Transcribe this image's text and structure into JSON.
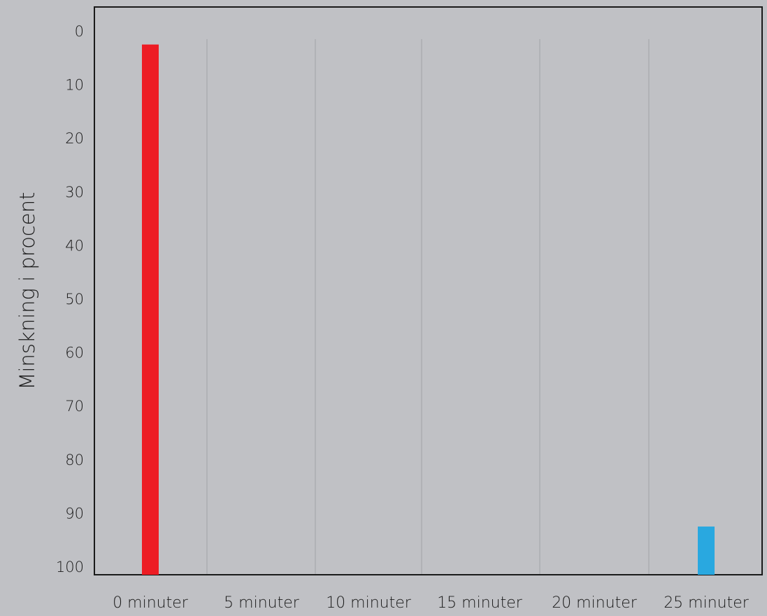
{
  "chart_data": {
    "type": "bar",
    "title": "",
    "xlabel": "",
    "ylabel": "Minskning i procent",
    "y_axis_inverted": true,
    "ylim": [
      0,
      100
    ],
    "yticks": [
      "0",
      "10",
      "20",
      "30",
      "40",
      "50",
      "60",
      "70",
      "80",
      "90",
      "100"
    ],
    "categories": [
      "0 minuter",
      "5 minuter",
      "10 minuter",
      "15 minuter",
      "20 minuter",
      "25 minuter"
    ],
    "values": [
      1,
      null,
      null,
      null,
      null,
      91
    ],
    "bar_colors": [
      "#ed1c24",
      null,
      null,
      null,
      null,
      "#29a8e0"
    ],
    "grid": "vertical separators between categories",
    "background": "#c0c1c5"
  }
}
